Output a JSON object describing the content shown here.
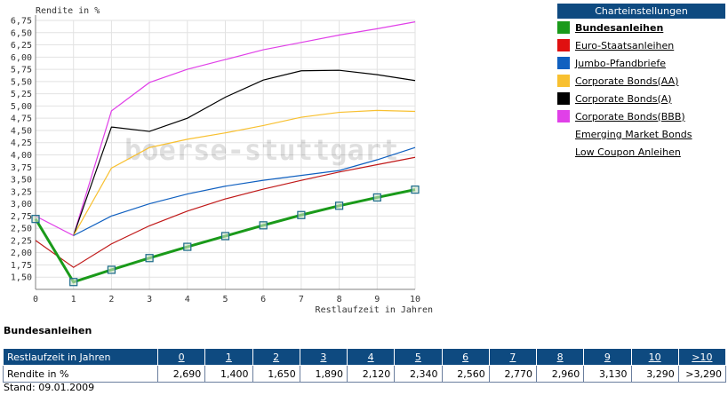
{
  "chart_data": {
    "type": "line",
    "title": "",
    "ylabel": "Rendite in %",
    "xlabel": "Restlaufzeit in Jahren",
    "x": [
      0,
      1,
      2,
      3,
      4,
      5,
      6,
      7,
      8,
      9,
      10
    ],
    "ylim": [
      1.25,
      6.75
    ],
    "yticks": [
      "1,50",
      "1,75",
      "2,00",
      "2,25",
      "2,50",
      "2,75",
      "3,00",
      "3,25",
      "3,50",
      "3,75",
      "4,00",
      "4,25",
      "4,50",
      "4,75",
      "5,00",
      "5,25",
      "5,50",
      "5,75",
      "6,00",
      "6,25",
      "6,50",
      "6,75"
    ],
    "xticks": [
      "0",
      "1",
      "2",
      "3",
      "4",
      "5",
      "6",
      "7",
      "8",
      "9",
      "10"
    ],
    "watermark": "boerse-stuttgart",
    "series": [
      {
        "name": "Corporate Bonds(BBB)",
        "color": "#e040e8",
        "x": [
          0,
          1,
          2,
          3,
          4,
          5,
          6,
          7,
          8,
          9,
          10
        ],
        "values": [
          2.75,
          2.35,
          4.9,
          5.48,
          5.75,
          5.95,
          6.15,
          6.3,
          6.45,
          6.58,
          6.72
        ],
        "markers": false
      },
      {
        "name": "Corporate Bonds(A)",
        "color": "#000000",
        "x": [
          1,
          2,
          3,
          4,
          5,
          6,
          7,
          8,
          9,
          10
        ],
        "values": [
          2.35,
          4.57,
          4.48,
          4.75,
          5.18,
          5.53,
          5.72,
          5.73,
          5.64,
          5.52
        ],
        "markers": false
      },
      {
        "name": "Corporate Bonds(AA)",
        "color": "#f8c030",
        "x": [
          1,
          2,
          3,
          4,
          5,
          6,
          7,
          8,
          9,
          10
        ],
        "values": [
          2.35,
          3.73,
          4.15,
          4.32,
          4.45,
          4.6,
          4.77,
          4.87,
          4.91,
          4.89
        ],
        "markers": false
      },
      {
        "name": "Jumbo-Pfandbriefe",
        "color": "#1060c0",
        "x": [
          1,
          2,
          3,
          4,
          5,
          6,
          7,
          8,
          9,
          10
        ],
        "values": [
          2.35,
          2.75,
          3.0,
          3.2,
          3.36,
          3.48,
          3.58,
          3.68,
          3.9,
          4.15
        ],
        "markers": false
      },
      {
        "name": "Euro-Staatsanleihen",
        "color": "#c01818",
        "x": [
          0,
          1,
          2,
          3,
          4,
          5,
          6,
          7,
          8,
          9,
          10
        ],
        "values": [
          2.25,
          1.7,
          2.18,
          2.55,
          2.85,
          3.1,
          3.3,
          3.48,
          3.65,
          3.8,
          3.95
        ],
        "markers": false
      },
      {
        "name": "Bundesanleihen",
        "color": "#1a9a1a",
        "x": [
          0,
          1,
          2,
          3,
          4,
          5,
          6,
          7,
          8,
          9,
          10
        ],
        "values": [
          2.69,
          1.4,
          1.65,
          1.89,
          2.12,
          2.34,
          2.56,
          2.77,
          2.96,
          3.13,
          3.29
        ],
        "markers": true
      }
    ]
  },
  "settings": {
    "header": "Charteinstellungen",
    "items": [
      {
        "label": "Bundesanleihen",
        "color": "#1a9a1a",
        "active": true
      },
      {
        "label": "Euro-Staatsanleihen",
        "color": "#e01010",
        "active": false
      },
      {
        "label": "Jumbo-Pfandbriefe",
        "color": "#1060c0",
        "active": false
      },
      {
        "label": "Corporate Bonds(AA)",
        "color": "#f8c030",
        "active": false
      },
      {
        "label": "Corporate Bonds(A)",
        "color": "#000000",
        "active": false
      },
      {
        "label": "Corporate Bonds(BBB)",
        "color": "#e040e8",
        "active": false
      },
      {
        "label": "Emerging Market Bonds",
        "color": "",
        "active": false
      },
      {
        "label": "Low Coupon Anleihen",
        "color": "",
        "active": false
      }
    ]
  },
  "table": {
    "title": "Bundesanleihen",
    "header_label": "Restlaufzeit in Jahren",
    "columns": [
      "0",
      "1",
      "2",
      "3",
      "4",
      "5",
      "6",
      "7",
      "8",
      "9",
      "10",
      ">10"
    ],
    "row_label": "Rendite in %",
    "values": [
      "2,690",
      "1,400",
      "1,650",
      "1,890",
      "2,120",
      "2,340",
      "2,560",
      "2,770",
      "2,960",
      "3,130",
      "3,290",
      ">3,290"
    ]
  },
  "footer": {
    "stand": "Stand: 09.01.2009"
  }
}
